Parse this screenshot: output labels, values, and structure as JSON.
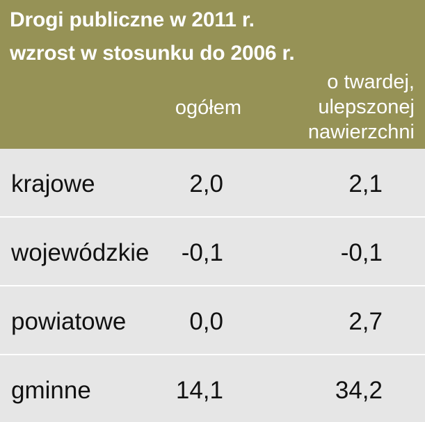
{
  "colors": {
    "header_background": "#969256",
    "header_text": "#ffffff",
    "row_background": "#e6e6e6",
    "row_text": "#111111",
    "divider": "#ffffff"
  },
  "chart_data": {
    "type": "table",
    "title": "Drogi publiczne w 2011 r.",
    "subtitle": "wzrost w stosunku do 2006 r.",
    "columns": [
      "",
      "ogółem",
      "o twardej, ulepszonej nawierzchni"
    ],
    "header_lines": {
      "o_twardej_1": "o twardej,",
      "o_twardej_2": "ulepszonej",
      "o_twardej_3": "nawierzchni"
    },
    "rows": [
      {
        "label": "krajowe",
        "values": [
          "2,0",
          "2,1"
        ]
      },
      {
        "label": "wojewódzkie",
        "values": [
          "-0,1",
          "-0,1"
        ]
      },
      {
        "label": "powiatowe",
        "values": [
          "0,0",
          "2,7"
        ]
      },
      {
        "label": "gminne",
        "values": [
          "14,1",
          "34,2"
        ]
      }
    ]
  }
}
